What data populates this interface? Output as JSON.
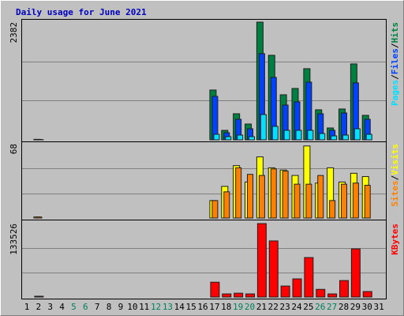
{
  "chart_data": [
    {
      "type": "bar",
      "title": "Daily usage for June 2021",
      "ylim": [
        0,
        2382
      ],
      "yticks": [
        2382
      ],
      "grid_divisions": 3,
      "series": [
        {
          "name": "Hits",
          "color": "#008040",
          "values": [
            0,
            10,
            0,
            0,
            0,
            0,
            0,
            0,
            0,
            0,
            0,
            0,
            0,
            0,
            0,
            0,
            1008,
            192,
            528,
            320,
            2382,
            1711,
            912,
            1040,
            1440,
            608,
            240,
            624,
            1536,
            496,
            0
          ]
        },
        {
          "name": "Files",
          "color": "#0040FF",
          "values": [
            0,
            8,
            0,
            0,
            0,
            0,
            0,
            0,
            0,
            0,
            0,
            0,
            0,
            0,
            0,
            0,
            880,
            144,
            416,
            224,
            1744,
            1264,
            704,
            768,
            1168,
            528,
            192,
            544,
            1152,
            416,
            0
          ]
        },
        {
          "name": "Pages",
          "color": "#00E0FF",
          "values": [
            0,
            4,
            0,
            0,
            0,
            0,
            0,
            0,
            0,
            0,
            0,
            0,
            0,
            0,
            0,
            0,
            112,
            64,
            96,
            64,
            512,
            272,
            192,
            192,
            192,
            128,
            80,
            96,
            224,
            112,
            0
          ]
        }
      ]
    },
    {
      "type": "bar",
      "ylim": [
        0,
        68
      ],
      "yticks": [
        68
      ],
      "grid_divisions": 3,
      "series": [
        {
          "name": "Visits",
          "color": "#FFFF00",
          "values": [
            0,
            1,
            0,
            0,
            0,
            0,
            0,
            0,
            0,
            0,
            0,
            0,
            0,
            0,
            0,
            0,
            16,
            29,
            48,
            33,
            56,
            46,
            44,
            39,
            66,
            32,
            46,
            33,
            41,
            38,
            0
          ]
        },
        {
          "name": "Sites",
          "color": "#FF8000",
          "values": [
            0,
            1,
            0,
            0,
            0,
            0,
            0,
            0,
            0,
            0,
            0,
            0,
            0,
            0,
            0,
            0,
            16,
            24,
            46,
            40,
            39,
            45,
            43,
            31,
            31,
            39,
            16,
            31,
            32,
            30,
            0
          ]
        }
      ]
    },
    {
      "type": "bar",
      "ylim": [
        0,
        133526
      ],
      "yticks": [
        133526
      ],
      "grid_divisions": 3,
      "categories": [
        "1",
        "2",
        "3",
        "4",
        "5",
        "6",
        "7",
        "8",
        "9",
        "10",
        "11",
        "12",
        "13",
        "14",
        "15",
        "16",
        "17",
        "18",
        "19",
        "20",
        "21",
        "22",
        "23",
        "24",
        "25",
        "26",
        "27",
        "28",
        "29",
        "30",
        "31"
      ],
      "category_colors": [
        "#000000",
        "#000000",
        "#000000",
        "#000000",
        "#00805C",
        "#00805C",
        "#000000",
        "#000000",
        "#000000",
        "#000000",
        "#000000",
        "#00805C",
        "#00805C",
        "#000000",
        "#000000",
        "#000000",
        "#000000",
        "#000000",
        "#00805C",
        "#00805C",
        "#000000",
        "#000000",
        "#000000",
        "#000000",
        "#000000",
        "#00805C",
        "#00805C",
        "#000000",
        "#000000",
        "#000000",
        "#000000"
      ],
      "series": [
        {
          "name": "KBytes",
          "color": "#FF0000",
          "values": [
            0,
            1500,
            0,
            0,
            0,
            0,
            0,
            0,
            0,
            0,
            0,
            0,
            0,
            0,
            0,
            0,
            27000,
            5700,
            7000,
            5700,
            133526,
            102000,
            20000,
            33000,
            71800,
            14000,
            5700,
            30000,
            87600,
            10000,
            0
          ]
        }
      ]
    }
  ]
}
